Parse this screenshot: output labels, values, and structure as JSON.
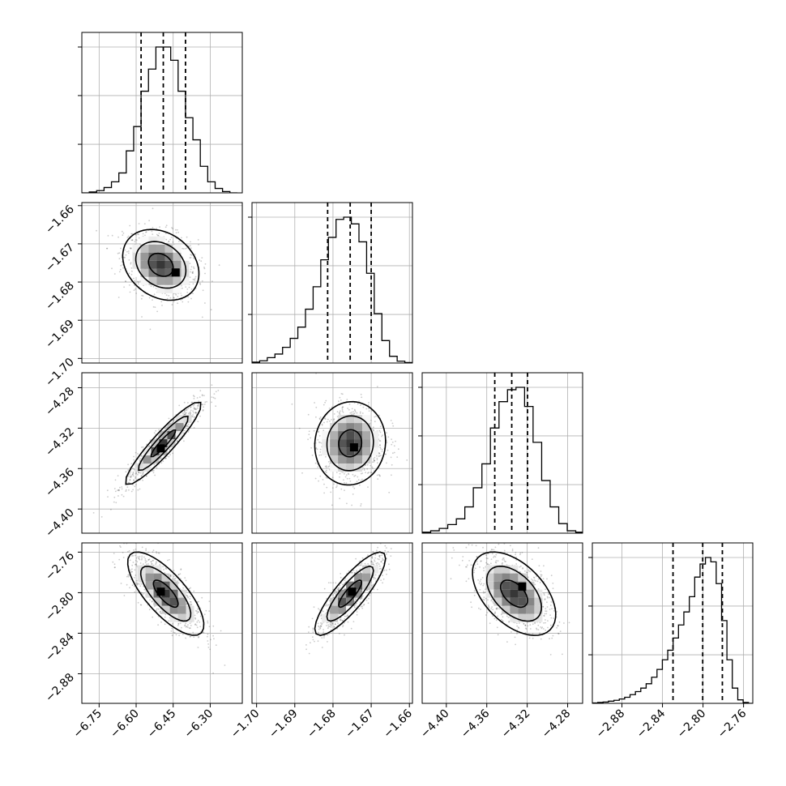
{
  "chart_data": {
    "type": "corner",
    "title": "",
    "parameters": [
      "",
      "",
      "",
      ""
    ],
    "marginals": [
      {
        "type": "bar",
        "xlim": [
          -6.82,
          -6.17
        ],
        "ticks": [
          -6.75,
          -6.6,
          -6.45,
          -6.3
        ],
        "tick_labels": [
          "−6.75",
          "−6.60",
          "−6.45",
          "−6.30"
        ],
        "quantiles": [
          -6.58,
          -6.49,
          -6.4
        ],
        "bins": [
          -6.82,
          -6.79,
          -6.76,
          -6.73,
          -6.7,
          -6.67,
          -6.64,
          -6.61,
          -6.58,
          -6.55,
          -6.52,
          -6.49,
          -6.46,
          -6.43,
          -6.4,
          -6.37,
          -6.34,
          -6.31,
          -6.28,
          -6.25,
          -6.22,
          -6.19
        ],
        "counts": [
          0,
          2,
          5,
          12,
          25,
          45,
          95,
          150,
          230,
          280,
          330,
          330,
          300,
          230,
          170,
          120,
          60,
          25,
          10,
          3,
          0
        ]
      },
      {
        "type": "bar",
        "xlim": [
          -1.7012,
          -1.6592
        ],
        "ticks": [
          -1.7,
          -1.69,
          -1.68,
          -1.67,
          -1.66
        ],
        "tick_labels": [
          "−1.70",
          "−1.69",
          "−1.68",
          "−1.67",
          "−1.66"
        ],
        "quantiles": [
          -1.6814,
          -1.6755,
          -1.67
        ],
        "bins": [
          -1.7012,
          -1.6992,
          -1.6972,
          -1.6952,
          -1.6932,
          -1.6912,
          -1.6892,
          -1.6872,
          -1.6852,
          -1.6832,
          -1.6812,
          -1.6792,
          -1.6772,
          -1.6752,
          -1.6732,
          -1.6712,
          -1.6692,
          -1.6672,
          -1.6652,
          -1.6632,
          -1.6612,
          -1.6592
        ],
        "counts": [
          2,
          5,
          12,
          20,
          35,
          55,
          80,
          120,
          170,
          230,
          280,
          320,
          325,
          310,
          270,
          200,
          110,
          50,
          15,
          4,
          1
        ]
      },
      {
        "type": "bar",
        "xlim": [
          -4.4239,
          -4.2652
        ],
        "ticks": [
          -4.4,
          -4.36,
          -4.32,
          -4.28
        ],
        "tick_labels": [
          "−4.40",
          "−4.36",
          "−4.32",
          "−4.28"
        ],
        "quantiles": [
          -4.3521,
          -4.3353,
          -4.3197
        ],
        "bins": [
          -4.4239,
          -4.4155,
          -4.407,
          -4.3986,
          -4.3901,
          -4.3817,
          -4.3733,
          -4.3648,
          -4.3564,
          -4.3479,
          -4.3395,
          -4.3311,
          -4.3226,
          -4.3142,
          -4.3057,
          -4.2973,
          -4.2888,
          -4.2804,
          -4.272,
          -4.2652
        ],
        "counts": [
          2,
          5,
          10,
          18,
          30,
          55,
          95,
          145,
          220,
          275,
          300,
          305,
          265,
          190,
          110,
          55,
          20,
          5,
          2
        ]
      },
      {
        "type": "bar",
        "xlim": [
          -2.9092,
          -2.7509
        ],
        "ticks": [
          -2.88,
          -2.84,
          -2.8,
          -2.76
        ],
        "tick_labels": [
          "−2.88",
          "−2.84",
          "−2.80",
          "−2.76"
        ],
        "quantiles": [
          -2.8296,
          -2.8003,
          -2.7809
        ],
        "bins": [
          -2.9092,
          -2.9039,
          -2.8986,
          -2.8933,
          -2.8879,
          -2.8826,
          -2.8773,
          -2.872,
          -2.8667,
          -2.8614,
          -2.8561,
          -2.8507,
          -2.8454,
          -2.8401,
          -2.8348,
          -2.8295,
          -2.8242,
          -2.8189,
          -2.8135,
          -2.8082,
          -2.8029,
          -2.7976,
          -2.7923,
          -2.787,
          -2.7817,
          -2.7764,
          -2.7711,
          -2.7657,
          -2.7604,
          -2.7551,
          -2.7509
        ],
        "counts": [
          1,
          2,
          3,
          5,
          7,
          10,
          14,
          20,
          27,
          35,
          45,
          60,
          78,
          100,
          122,
          150,
          180,
          210,
          245,
          290,
          320,
          335,
          325,
          275,
          190,
          100,
          35,
          8,
          2,
          0
        ]
      }
    ],
    "pairs": [
      {
        "row": 1,
        "col": 0,
        "xlim": [
          -6.82,
          -6.17
        ],
        "ylim": [
          -1.7012,
          -1.6592
        ],
        "yticks": [
          -1.7,
          -1.69,
          -1.68,
          -1.67,
          -1.66
        ],
        "ytick_labels": [
          "−1.70",
          "−1.69",
          "−1.68",
          "−1.67",
          "−1.66"
        ],
        "mean": [
          -6.5,
          -1.6755
        ],
        "sd": [
          0.075,
          0.0045
        ],
        "rho": -0.25,
        "peak": [
          -6.44,
          -1.6775
        ]
      },
      {
        "row": 2,
        "col": 0,
        "xlim": [
          -6.82,
          -6.17
        ],
        "ylim": [
          -4.4239,
          -4.2652
        ],
        "yticks": [
          -4.4,
          -4.36,
          -4.32,
          -4.28
        ],
        "ytick_labels": [
          "−4.40",
          "−4.36",
          "−4.32",
          "−4.28"
        ],
        "mean": [
          -6.49,
          -4.335
        ],
        "sd": [
          0.075,
          0.02
        ],
        "rho": 0.93,
        "peak": [
          -6.5,
          -4.34
        ]
      },
      {
        "row": 2,
        "col": 1,
        "xlim": [
          -1.7012,
          -1.6592
        ],
        "ylim": [
          -4.4239,
          -4.2652
        ],
        "mean": [
          -1.6755,
          -4.335
        ],
        "sd": [
          0.0045,
          0.02
        ],
        "rho": 0.05,
        "peak": [
          -1.6745,
          -4.339
        ]
      },
      {
        "row": 3,
        "col": 0,
        "xlim": [
          -6.82,
          -6.17
        ],
        "ylim": [
          -2.9092,
          -2.7509
        ],
        "yticks": [
          -2.88,
          -2.84,
          -2.8,
          -2.76
        ],
        "ytick_labels": [
          "−2.88",
          "−2.84",
          "−2.80",
          "−2.76"
        ],
        "mean": [
          -6.48,
          -2.801
        ],
        "sd": [
          0.075,
          0.02
        ],
        "rho": -0.75,
        "peak": [
          -6.5,
          -2.799
        ]
      },
      {
        "row": 3,
        "col": 1,
        "xlim": [
          -1.7012,
          -1.6592
        ],
        "ylim": [
          -2.9092,
          -2.7509
        ],
        "mean": [
          -1.6755,
          -2.801
        ],
        "sd": [
          0.0045,
          0.02
        ],
        "rho": 0.85,
        "peak": [
          -1.675,
          -2.799
        ]
      },
      {
        "row": 3,
        "col": 2,
        "xlim": [
          -4.4239,
          -4.2652
        ],
        "ylim": [
          -2.9092,
          -2.7509
        ],
        "mean": [
          -4.333,
          -2.801
        ],
        "sd": [
          0.02,
          0.02
        ],
        "rho": -0.5,
        "peak": [
          -4.325,
          -2.794
        ]
      }
    ],
    "contour_levels": [
      0.12,
      0.4,
      0.8
    ],
    "grid": true,
    "colors": {
      "line": "#000000",
      "grid": "#b0b0b0",
      "points": "#444444"
    }
  }
}
